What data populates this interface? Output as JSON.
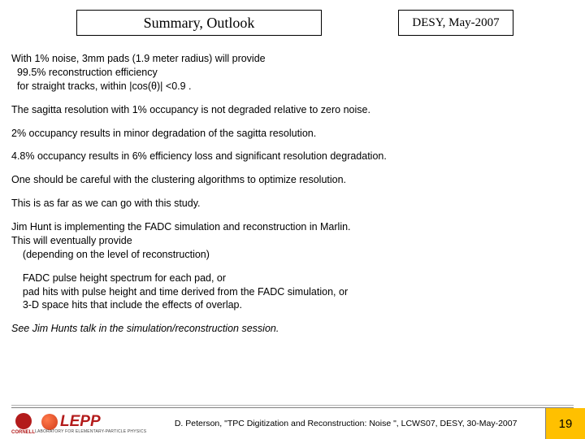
{
  "header": {
    "title": "Summary, Outlook",
    "date": "DESY, May-2007"
  },
  "paragraphs": {
    "p1a": "With 1% noise, 3mm pads (1.9 meter radius)  will provide",
    "p1b": "99.5% reconstruction efficiency",
    "p1c": "for straight tracks, within |cos(θ)| <0.9 .",
    "p2": "The sagitta resolution with 1% occupancy is not degraded relative to zero noise.",
    "p3": "2% occupancy results in minor degradation of the sagitta resolution.",
    "p4": "4.8% occupancy results in 6% efficiency loss and significant resolution degradation.",
    "p5": "One should be careful with the clustering algorithms to optimize resolution.",
    "p6": "This is as far as we can go with this study.",
    "p7a": "Jim Hunt is implementing the FADC simulation and reconstruction in Marlin.",
    "p7b": "This will eventually provide",
    "p7c": "(depending on the level of reconstruction)",
    "p8a": "FADC pulse height spectrum for each pad, or",
    "p8b": "pad hits with pulse height and time derived from the FADC simulation, or",
    "p8c": "3-D space hits that include the effects of overlap.",
    "p9": "See Jim Hunts talk in the simulation/reconstruction session."
  },
  "footer": {
    "cornell": "CORNELL",
    "lepp": "LEPP",
    "lepp_sub": "LABORATORY FOR ELEMENTARY-PARTICLE PHYSICS",
    "citation": "D. Peterson, \"TPC Digitization and Reconstruction: Noise \", LCWS07, DESY, 30-May-2007",
    "page": "19"
  },
  "colors": {
    "accent": "#b31b1b",
    "page_bg": "#ffc000"
  }
}
